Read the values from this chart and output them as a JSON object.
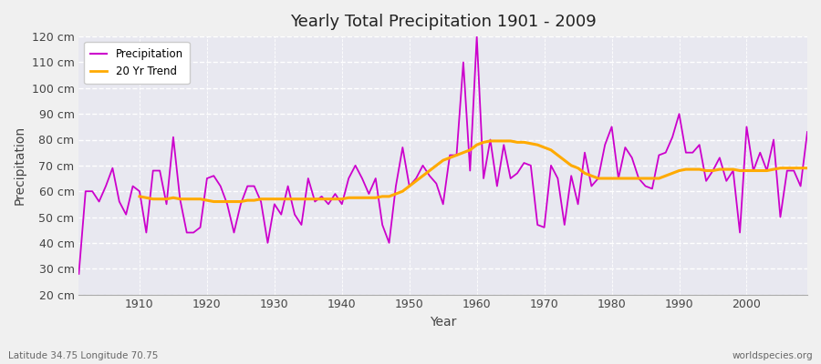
{
  "title": "Yearly Total Precipitation 1901 - 2009",
  "xlabel": "Year",
  "ylabel": "Precipitation",
  "subtitle": "Latitude 34.75 Longitude 70.75",
  "watermark": "worldspecies.org",
  "fig_bg_color": "#f0f0f0",
  "plot_bg_color": "#e8e8f0",
  "precip_color": "#cc00cc",
  "trend_color": "#ffaa00",
  "ylim": [
    20,
    120
  ],
  "yticks": [
    20,
    30,
    40,
    50,
    60,
    70,
    80,
    90,
    100,
    110,
    120
  ],
  "xlim": [
    1901,
    2009
  ],
  "xticks": [
    1910,
    1920,
    1930,
    1940,
    1950,
    1960,
    1970,
    1980,
    1990,
    2000
  ],
  "years": [
    1901,
    1902,
    1903,
    1904,
    1905,
    1906,
    1907,
    1908,
    1909,
    1910,
    1911,
    1912,
    1913,
    1914,
    1915,
    1916,
    1917,
    1918,
    1919,
    1920,
    1921,
    1922,
    1923,
    1924,
    1925,
    1926,
    1927,
    1928,
    1929,
    1930,
    1931,
    1932,
    1933,
    1934,
    1935,
    1936,
    1937,
    1938,
    1939,
    1940,
    1941,
    1942,
    1943,
    1944,
    1945,
    1946,
    1947,
    1948,
    1949,
    1950,
    1951,
    1952,
    1953,
    1954,
    1955,
    1956,
    1957,
    1958,
    1959,
    1960,
    1961,
    1962,
    1963,
    1964,
    1965,
    1966,
    1967,
    1968,
    1969,
    1970,
    1971,
    1972,
    1973,
    1974,
    1975,
    1976,
    1977,
    1978,
    1979,
    1980,
    1981,
    1982,
    1983,
    1984,
    1985,
    1986,
    1987,
    1988,
    1989,
    1990,
    1991,
    1992,
    1993,
    1994,
    1995,
    1996,
    1997,
    1998,
    1999,
    2000,
    2001,
    2002,
    2003,
    2004,
    2005,
    2006,
    2007,
    2008,
    2009
  ],
  "precip": [
    28,
    60,
    60,
    56,
    62,
    69,
    56,
    51,
    62,
    60,
    44,
    68,
    68,
    55,
    81,
    57,
    44,
    44,
    46,
    65,
    66,
    62,
    55,
    44,
    55,
    62,
    62,
    56,
    40,
    55,
    51,
    62,
    51,
    47,
    65,
    56,
    58,
    55,
    59,
    55,
    65,
    70,
    65,
    59,
    65,
    47,
    40,
    62,
    77,
    62,
    65,
    70,
    66,
    63,
    55,
    74,
    74,
    110,
    68,
    120,
    65,
    80,
    62,
    78,
    65,
    67,
    71,
    70,
    47,
    46,
    70,
    65,
    47,
    66,
    55,
    75,
    62,
    65,
    78,
    85,
    65,
    77,
    73,
    65,
    62,
    61,
    74,
    75,
    81,
    90,
    75,
    75,
    78,
    64,
    68,
    73,
    64,
    68,
    44,
    85,
    68,
    75,
    68,
    80,
    50,
    68,
    68,
    62,
    83
  ],
  "trend": [
    null,
    null,
    null,
    null,
    null,
    null,
    null,
    null,
    null,
    58,
    57.5,
    57,
    57,
    57,
    57.5,
    57,
    57,
    57,
    57,
    56.5,
    56,
    56,
    56,
    56,
    56,
    56.5,
    56.5,
    57,
    57,
    57,
    57,
    57,
    57,
    57,
    57,
    57,
    57,
    57,
    57,
    57,
    57.5,
    57.5,
    57.5,
    57.5,
    57.5,
    58,
    58,
    59,
    60,
    62,
    64,
    66,
    68,
    70,
    72,
    73,
    74,
    75,
    76,
    78,
    79,
    79.5,
    79.5,
    79.5,
    79.5,
    79,
    79,
    78.5,
    78,
    77,
    76,
    74,
    72,
    70,
    69,
    67,
    66,
    65,
    65,
    65,
    65,
    65,
    65,
    65,
    65,
    65,
    65,
    66,
    67,
    68,
    68.5,
    68.5,
    68.5,
    68,
    68,
    68.5,
    68.5,
    68.5,
    68,
    68,
    68,
    68,
    68,
    68.5,
    69,
    69,
    69,
    69,
    69
  ]
}
